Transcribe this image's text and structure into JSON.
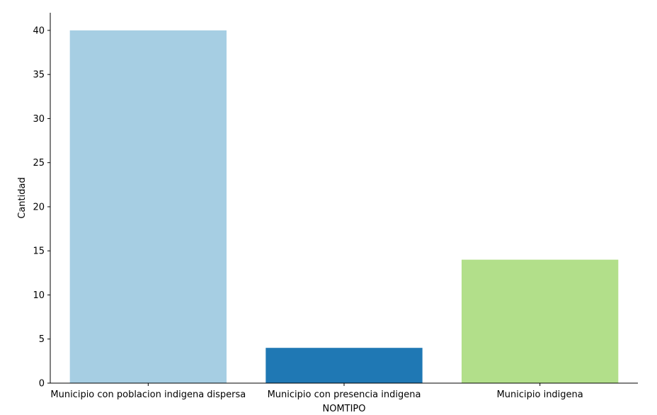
{
  "chart_data": {
    "type": "bar",
    "title": "",
    "xlabel": "NOMTIPO",
    "ylabel": "Cantidad",
    "categories": [
      "Municipio con poblacion indigena dispersa",
      "Municipio con presencia indigena",
      "Municipio indigena"
    ],
    "values": [
      40,
      4,
      14
    ],
    "colors": [
      "#a6cee3",
      "#1f78b4",
      "#b2df8a"
    ],
    "ylim": [
      0,
      42
    ],
    "yticks": [
      0,
      5,
      10,
      15,
      20,
      25,
      30,
      35,
      40
    ],
    "grid": false,
    "legend": "none"
  }
}
